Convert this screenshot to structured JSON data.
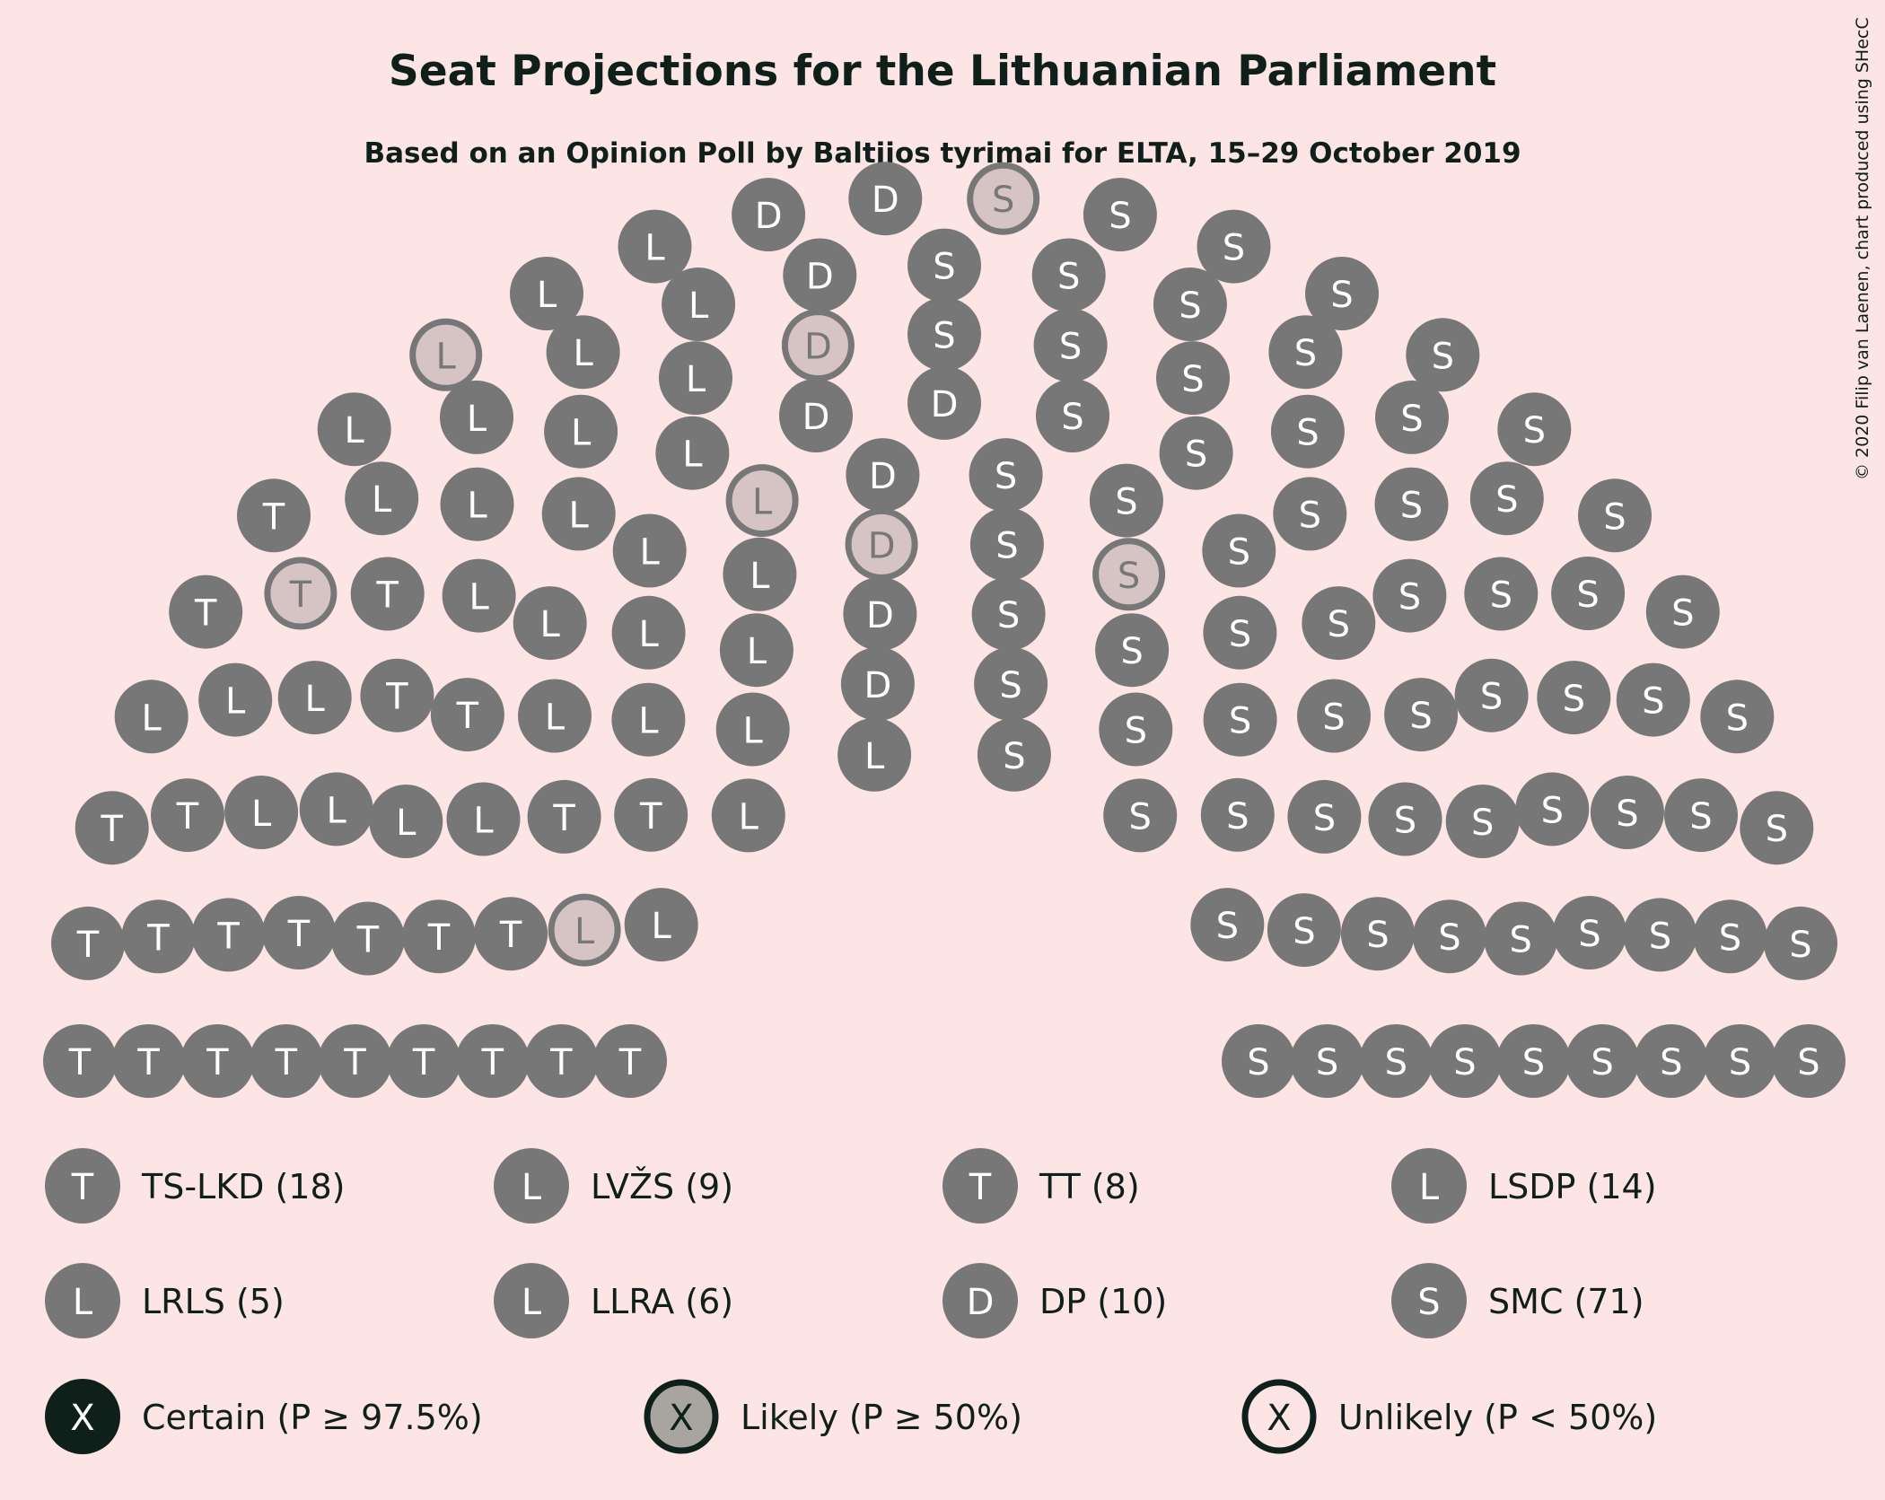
{
  "title": "Seat Projections for the Lithuanian Parliament",
  "subtitle": "Based on an Opinion Poll by Baltijos tyrimai for ELTA, 15–29 October 2019",
  "copyright": "© 2020 Filip van Laenen, chart produced using SHecC",
  "colors": {
    "background": "#FDE5E5",
    "seat": "#777777",
    "likely_fill": "#D6C4C4",
    "text_dark": "#0F1F1A",
    "certain": "#0F1F1A",
    "likely": "#A8A5A0"
  },
  "chart_data": {
    "type": "parliament",
    "total_seats": 141,
    "parties": [
      {
        "name": "TS-LKD",
        "letter": "T",
        "seats": 18,
        "label": "TS-LKD (18)"
      },
      {
        "name": "LVŽS",
        "letter": "L",
        "seats": 9,
        "label": "LVŽS (9)"
      },
      {
        "name": "TT",
        "letter": "T",
        "seats": 8,
        "label": "TT (8)"
      },
      {
        "name": "LSDP",
        "letter": "L",
        "seats": 14,
        "label": "LSDP (14)"
      },
      {
        "name": "LRLS",
        "letter": "L",
        "seats": 5,
        "label": "LRLS (5)"
      },
      {
        "name": "LLRA",
        "letter": "L",
        "seats": 6,
        "label": "LLRA (6)"
      },
      {
        "name": "DP",
        "letter": "D",
        "seats": 10,
        "label": "DP (10)"
      },
      {
        "name": "SMC",
        "letter": "S",
        "seats": 71,
        "label": "SMC (71)"
      }
    ],
    "legend_status": [
      {
        "letter": "X",
        "label": "Certain (P ≥ 97.5%)",
        "style": "certain"
      },
      {
        "letter": "X",
        "label": "Likely (P ≥ 50%)",
        "style": "likely"
      },
      {
        "letter": "X",
        "label": "Unlikely (P < 50%)",
        "style": "unlikely"
      }
    ]
  }
}
